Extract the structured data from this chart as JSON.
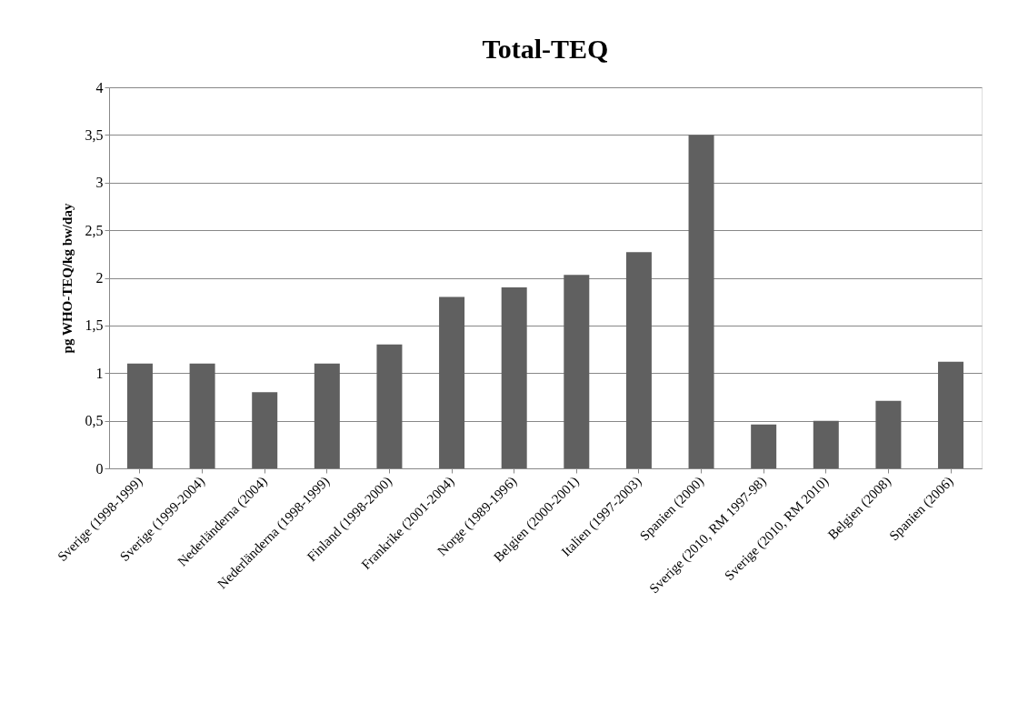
{
  "chart_data": {
    "type": "bar",
    "title": "Total-TEQ",
    "ylabel": "pg WHO-TEQ/kg bw/day",
    "categories": [
      "Sverige (1998-1999)",
      "Sverige (1999-2004)",
      "Nederländerna (2004)",
      "Nederländerna (1998-1999)",
      "Finland (1998-2000)",
      "Frankrike (2001-2004)",
      "Norge (1989-1996)",
      "Belgien (2000-2001)",
      "Italien (1997-2003)",
      "Spanien (2000)",
      "Sverige (2010, RM 1997-98)",
      "Sverige (2010, RM 2010)",
      "Belgien (2008)",
      "Spanien (2006)"
    ],
    "values": [
      1.1,
      1.1,
      0.8,
      1.1,
      1.3,
      1.8,
      1.9,
      2.03,
      2.27,
      3.5,
      0.46,
      0.5,
      0.71,
      1.12
    ],
    "color": "#606060",
    "ylim": [
      0,
      4
    ],
    "yticks": [
      0,
      {
        "value": 0.5,
        "label": "0,5"
      },
      1,
      {
        "value": 1.5,
        "label": "1,5"
      },
      2,
      {
        "value": 2.5,
        "label": "2,5"
      },
      3,
      {
        "value": 3.5,
        "label": "3,5"
      },
      4
    ],
    "grid": "y"
  }
}
